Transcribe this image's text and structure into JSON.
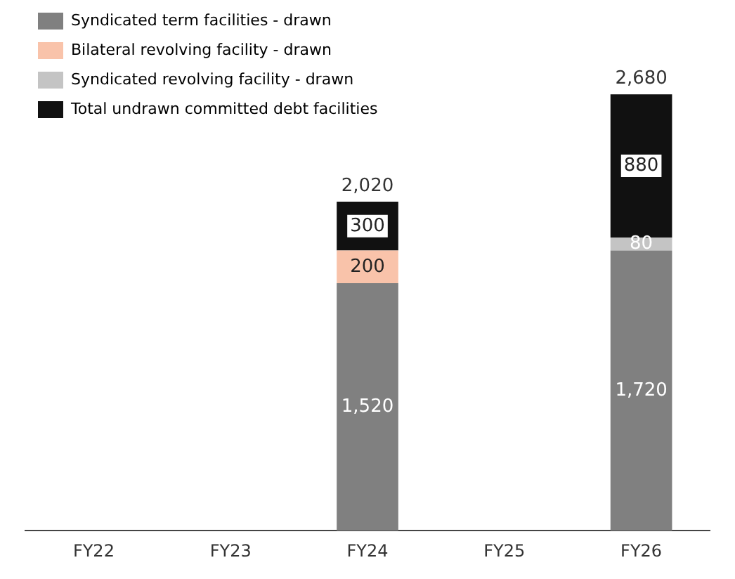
{
  "chart_data": {
    "type": "bar",
    "stacked": true,
    "categories": [
      "FY22",
      "FY23",
      "FY24",
      "FY25",
      "FY26"
    ],
    "series": [
      {
        "name": "Syndicated term facilities - drawn",
        "color": "#808080",
        "values": [
          null,
          null,
          1520,
          null,
          1720
        ],
        "value_labels": [
          null,
          null,
          "1,520",
          null,
          "1,720"
        ]
      },
      {
        "name": "Bilateral revolving facility - drawn",
        "color": "#f9c3aa",
        "values": [
          null,
          null,
          200,
          null,
          null
        ],
        "value_labels": [
          null,
          null,
          "200",
          null,
          null
        ]
      },
      {
        "name": "Syndicated revolving facility - drawn",
        "color": "#c4c4c4",
        "values": [
          null,
          null,
          null,
          null,
          80
        ],
        "value_labels": [
          null,
          null,
          null,
          null,
          "80"
        ]
      },
      {
        "name": "Total undrawn committed debt facilities",
        "color": "#111111",
        "values": [
          null,
          null,
          300,
          null,
          880
        ],
        "value_labels": [
          null,
          null,
          "300",
          null,
          "880"
        ]
      }
    ],
    "totals": [
      null,
      null,
      "2,020",
      null,
      "2,680"
    ],
    "legend": "left",
    "grid": false
  }
}
